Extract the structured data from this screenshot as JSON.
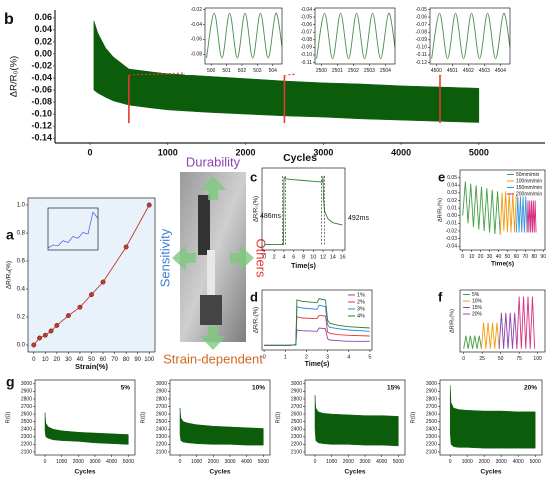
{
  "chart_data": [
    {
      "type": "area",
      "panel_label": "b",
      "xlabel": "Cycles",
      "ylabel": "ΔR/R₀(%)",
      "color": "#0b5d0b",
      "xlim": [
        -450,
        5850
      ],
      "ylim": [
        -0.148,
        0.073
      ],
      "xticks": [
        0,
        1000,
        2000,
        3000,
        4000,
        5000
      ],
      "yticks": [
        0.06,
        0.04,
        0.02,
        {
          "value": 0,
          "label": "0.00"
        },
        -0.02,
        -0.04,
        -0.06,
        -0.08,
        {
          "value": -0.1,
          "label": "-0.10"
        },
        -0.12,
        -0.14
      ],
      "x": [
        50,
        100,
        200,
        300,
        500,
        800,
        1000,
        1500,
        2000,
        2500,
        3000,
        3500,
        4000,
        4500,
        5000
      ],
      "series": [
        {
          "values": [
            0.055,
            0.035,
            0.01,
            -0.005,
            -0.025,
            -0.03,
            -0.033,
            -0.037,
            -0.041,
            -0.045,
            -0.048,
            -0.05,
            -0.053,
            -0.055,
            -0.057
          ]
        },
        {
          "values": [
            -0.06,
            -0.065,
            -0.072,
            -0.078,
            -0.085,
            -0.09,
            -0.093,
            -0.097,
            -0.1,
            -0.103,
            -0.105,
            -0.108,
            -0.11,
            -0.112,
            -0.114
          ]
        }
      ]
    },
    {
      "type": "line",
      "smooth": true,
      "xlim": [
        499.6,
        504.6
      ],
      "ylim": [
        -0.093,
        -0.018
      ],
      "xticks": [
        500,
        501,
        502,
        503,
        504
      ],
      "yticks": [
        -0.02,
        -0.04,
        -0.06,
        -0.08
      ],
      "series": [
        {
          "color": "#4c8a4c",
          "x": [
            499.7,
            500.2,
            500.7,
            501.2,
            501.7,
            502.2,
            502.7,
            503.2,
            503.7,
            504.2,
            504.6
          ],
          "values": [
            -0.085,
            -0.025,
            -0.085,
            -0.025,
            -0.085,
            -0.025,
            -0.085,
            -0.025,
            -0.085,
            -0.025,
            -0.07
          ]
        }
      ]
    },
    {
      "type": "line",
      "smooth": true,
      "xlim": [
        2499.6,
        2504.6
      ],
      "ylim": [
        -0.112,
        -0.038
      ],
      "xticks": [
        2500,
        2501,
        2502,
        2503,
        2504
      ],
      "yticks": [
        -0.04,
        -0.05,
        -0.06,
        -0.07,
        -0.08,
        -0.09,
        {
          "value": -0.1,
          "label": "-0.10"
        },
        -0.11
      ],
      "series": [
        {
          "color": "#4c8a4c",
          "x": [
            2499.7,
            2500.2,
            2500.7,
            2501.2,
            2501.7,
            2502.2,
            2502.7,
            2503.2,
            2503.7,
            2504.2,
            2504.6
          ],
          "values": [
            -0.105,
            -0.045,
            -0.105,
            -0.045,
            -0.105,
            -0.045,
            -0.105,
            -0.045,
            -0.105,
            -0.045,
            -0.09
          ]
        }
      ]
    },
    {
      "type": "line",
      "smooth": true,
      "xlim": [
        4499.6,
        4504.6
      ],
      "ylim": [
        -0.122,
        -0.048
      ],
      "xticks": [
        4500,
        4501,
        4502,
        4503,
        4504
      ],
      "yticks": [
        -0.05,
        -0.06,
        -0.07,
        -0.08,
        -0.09,
        {
          "value": -0.1,
          "label": "-0.10"
        },
        -0.11,
        -0.12
      ],
      "series": [
        {
          "color": "#4c8a4c",
          "x": [
            4499.7,
            4500.2,
            4500.7,
            4501.2,
            4501.7,
            4502.2,
            4502.7,
            4503.2,
            4503.7,
            4504.2,
            4504.6
          ],
          "values": [
            -0.115,
            -0.055,
            -0.115,
            -0.055,
            -0.115,
            -0.055,
            -0.115,
            -0.055,
            -0.115,
            -0.055,
            -0.1
          ]
        }
      ]
    },
    {
      "type": "line",
      "panel_label": "a",
      "markers": true,
      "background": "#e9f2fb",
      "xlabel": "Strain(%)",
      "ylabel": "ΔR/R₀(%)",
      "xlim": [
        -5,
        105
      ],
      "ylim": [
        -0.05,
        1.05
      ],
      "xticks": [
        0,
        10,
        20,
        30,
        40,
        50,
        60,
        70,
        80,
        90,
        100
      ],
      "yticks": [
        {
          "value": 0,
          "label": "0.0"
        },
        0.2,
        0.4,
        0.6,
        0.8,
        {
          "value": 1,
          "label": "1.0"
        }
      ],
      "series": [
        {
          "color": "#c0392b",
          "x": [
            0,
            5,
            10,
            15,
            20,
            30,
            40,
            50,
            60,
            80,
            100
          ],
          "values": [
            0,
            0.05,
            0.07,
            0.1,
            0.14,
            0.21,
            0.27,
            0.36,
            0.45,
            0.7,
            1.0
          ]
        }
      ]
    },
    {
      "type": "line",
      "xlim": [
        0,
        10
      ],
      "ylim": [
        0,
        1
      ],
      "series": [
        {
          "color": "#3b5bdb",
          "x": [
            0,
            1,
            2,
            3,
            4,
            5,
            6,
            7,
            8,
            9,
            10
          ],
          "values": [
            0.05,
            0.12,
            0.1,
            0.22,
            0.18,
            0.32,
            0.28,
            0.42,
            0.38,
            0.9,
            0.75
          ]
        }
      ]
    },
    {
      "type": "line",
      "panel_label": "c",
      "xlabel": "Time(s)",
      "ylabel": "ΔR/R₀(%)",
      "annotations": [
        "486ms",
        "492ms"
      ],
      "xlim": [
        -0.5,
        16.5
      ],
      "ylim": [
        -0.05,
        1
      ],
      "xticks": [
        0,
        2,
        4,
        6,
        8,
        10,
        12,
        14,
        16
      ],
      "series": [
        {
          "color": "#2e7d32",
          "x": [
            0,
            3.9,
            4.0,
            4.05,
            4.5,
            6,
            8,
            10,
            11.9,
            12.0,
            12.1,
            12.3,
            13,
            14,
            16
          ],
          "values": [
            0.02,
            0.02,
            0.85,
            0.88,
            0.86,
            0.85,
            0.84,
            0.83,
            0.82,
            0.9,
            0.6,
            0.45,
            0.35,
            0.3,
            0.27
          ]
        }
      ]
    },
    {
      "type": "line",
      "panel_label": "d",
      "xlabel": "Time(s)",
      "ylabel": "ΔR/R₀(%)",
      "legend": "upper right",
      "xlim": [
        -0.1,
        5.1
      ],
      "ylim": [
        -0.05,
        0.85
      ],
      "xticks": [
        0,
        1,
        2,
        3,
        4,
        5
      ],
      "x": [
        0,
        1.2,
        1.5,
        1.55,
        1.8,
        2.5,
        2.6,
        2.9,
        3.0,
        3.1,
        3.5,
        4,
        5
      ],
      "series": [
        {
          "name": "1%",
          "color": "#8e44ad",
          "values": [
            0.02,
            0.02,
            0.03,
            0.25,
            0.24,
            0.23,
            0.28,
            0.27,
            0.12,
            0.1,
            0.09,
            0.08,
            0.08
          ]
        },
        {
          "name": "2%",
          "color": "#e53935",
          "values": [
            0.02,
            0.02,
            0.03,
            0.45,
            0.43,
            0.42,
            0.47,
            0.46,
            0.22,
            0.2,
            0.18,
            0.17,
            0.16
          ]
        },
        {
          "name": "3%",
          "color": "#1e88e5",
          "values": [
            0.02,
            0.02,
            0.03,
            0.6,
            0.58,
            0.56,
            0.62,
            0.6,
            0.33,
            0.29,
            0.27,
            0.25,
            0.23
          ]
        },
        {
          "name": "4%",
          "color": "#2e7d32",
          "values": [
            0.02,
            0.02,
            0.03,
            0.7,
            0.68,
            0.66,
            0.72,
            0.7,
            0.4,
            0.35,
            0.32,
            0.3,
            0.28
          ]
        }
      ]
    },
    {
      "type": "line",
      "panel_label": "e",
      "xlabel": "Time(s)",
      "ylabel": "ΔR/R₀(%)",
      "legend": "upper right",
      "xlim": [
        -3,
        92
      ],
      "ylim": [
        -0.045,
        0.06
      ],
      "xticks": [
        0,
        10,
        20,
        30,
        40,
        50,
        60,
        70,
        80,
        90
      ],
      "yticks": [
        0.05,
        0.04,
        0.03,
        0.02,
        0.01,
        {
          "value": 0,
          "label": "0.00"
        },
        -0.01,
        -0.02,
        -0.03,
        -0.04
      ],
      "series": [
        {
          "name": "50mm/min",
          "color": "#43a047",
          "x": [
            0,
            3,
            6,
            9,
            12,
            15,
            18,
            21,
            24,
            27,
            30,
            33,
            36,
            39,
            42
          ],
          "values": [
            0,
            0.045,
            -0.01,
            0.042,
            -0.015,
            0.04,
            -0.018,
            0.038,
            -0.02,
            0.036,
            -0.022,
            0.034,
            -0.024,
            0.032,
            -0.025
          ]
        },
        {
          "name": "100mm/min",
          "color": "#f39c12",
          "x": [
            42,
            44,
            46,
            48,
            50,
            52,
            54,
            56,
            58,
            60
          ],
          "values": [
            -0.025,
            0.03,
            -0.02,
            0.032,
            -0.022,
            0.03,
            -0.022,
            0.03,
            -0.022,
            0.028
          ]
        },
        {
          "name": "150mm/min",
          "color": "#3498db",
          "x": [
            60,
            61.5,
            63,
            64.5,
            66,
            67.5,
            69,
            70.5,
            72
          ],
          "values": [
            -0.022,
            0.025,
            -0.022,
            0.025,
            -0.022,
            0.025,
            -0.022,
            0.025,
            -0.022
          ]
        },
        {
          "name": "200mm/min",
          "color": "#d63384",
          "x": [
            72,
            73,
            74,
            75,
            76,
            77,
            78,
            79,
            80,
            81,
            82
          ],
          "values": [
            -0.022,
            0.02,
            -0.022,
            0.02,
            -0.022,
            0.02,
            -0.022,
            0.02,
            -0.022,
            0.02,
            -0.022
          ]
        }
      ]
    },
    {
      "type": "line",
      "panel_label": "f",
      "ylabel": "ΔR/R₀(%)",
      "legend": "upper left",
      "xlim": [
        -5,
        110
      ],
      "ylim": [
        0,
        0.95
      ],
      "xticks": [
        0,
        25,
        50,
        75,
        100
      ],
      "series": [
        {
          "name": "5%",
          "color": "#43a047",
          "x": [
            0,
            3,
            6,
            9,
            12,
            15,
            18,
            21,
            24
          ],
          "values": [
            0.05,
            0.25,
            0.05,
            0.25,
            0.05,
            0.25,
            0.05,
            0.25,
            0.05
          ]
        },
        {
          "name": "10%",
          "color": "#f39c12",
          "x": [
            24,
            27,
            30,
            33,
            36,
            39,
            42,
            45,
            48
          ],
          "values": [
            0.05,
            0.45,
            0.05,
            0.45,
            0.05,
            0.45,
            0.05,
            0.45,
            0.05
          ]
        },
        {
          "name": "15%",
          "color": "#8e44ad",
          "x": [
            48,
            51,
            54,
            57,
            60,
            63,
            66,
            69,
            72
          ],
          "values": [
            0.05,
            0.6,
            0.05,
            0.6,
            0.05,
            0.6,
            0.05,
            0.6,
            0.05
          ]
        },
        {
          "name": "20%",
          "color": "#d63384",
          "x": [
            72,
            75,
            78,
            81,
            84,
            87,
            90,
            93,
            96
          ],
          "values": [
            0.05,
            0.85,
            0.05,
            0.85,
            0.05,
            0.85,
            0.05,
            0.85,
            0.05
          ]
        }
      ]
    },
    {
      "type": "area",
      "panel_label": "g",
      "xlabel": "Cycles",
      "ylabel": "R(Ω)",
      "annotations": [
        "5%"
      ],
      "color": "#0b5d0b",
      "xlim": [
        -600,
        5400
      ],
      "ylim": [
        2060,
        3050
      ],
      "xticks": [
        0,
        1000,
        2000,
        3000,
        4000,
        5000
      ],
      "yticks": [
        2100,
        2200,
        2300,
        2400,
        2500,
        2600,
        2700,
        2800,
        2900,
        3000
      ],
      "x": [
        0,
        50,
        200,
        500,
        1000,
        2000,
        3000,
        4000,
        5000
      ],
      "series": [
        {
          "values": [
            2620,
            2480,
            2430,
            2400,
            2380,
            2360,
            2350,
            2340,
            2330
          ]
        },
        {
          "values": [
            2380,
            2300,
            2280,
            2260,
            2250,
            2240,
            2220,
            2210,
            2200
          ]
        }
      ]
    },
    {
      "type": "area",
      "xlabel": "Cycles",
      "ylabel": "R(Ω)",
      "annotations": [
        "10%"
      ],
      "color": "#0b5d0b",
      "xlim": [
        -600,
        5400
      ],
      "ylim": [
        2060,
        3050
      ],
      "xticks": [
        0,
        1000,
        2000,
        3000,
        4000,
        5000
      ],
      "yticks": [
        2100,
        2200,
        2300,
        2400,
        2500,
        2600,
        2700,
        2800,
        2900,
        3000
      ],
      "x": [
        0,
        50,
        200,
        500,
        1000,
        2000,
        3000,
        4000,
        5000
      ],
      "series": [
        {
          "values": [
            2680,
            2550,
            2500,
            2480,
            2460,
            2440,
            2430,
            2420,
            2410
          ]
        },
        {
          "values": [
            2330,
            2250,
            2230,
            2220,
            2210,
            2200,
            2200,
            2190,
            2190
          ]
        }
      ]
    },
    {
      "type": "area",
      "xlabel": "Cycles",
      "ylabel": "R(Ω)",
      "annotations": [
        "15%"
      ],
      "color": "#0b5d0b",
      "xlim": [
        -600,
        5400
      ],
      "ylim": [
        2060,
        3050
      ],
      "xticks": [
        0,
        1000,
        2000,
        3000,
        4000,
        5000
      ],
      "yticks": [
        2100,
        2200,
        2300,
        2400,
        2500,
        2600,
        2700,
        2800,
        2900,
        3000
      ],
      "x": [
        0,
        50,
        200,
        500,
        1000,
        2000,
        3000,
        4000,
        5000
      ],
      "series": [
        {
          "values": [
            2850,
            2680,
            2630,
            2610,
            2600,
            2590,
            2580,
            2580,
            2570
          ]
        },
        {
          "values": [
            2400,
            2250,
            2220,
            2210,
            2200,
            2200,
            2190,
            2190,
            2180
          ]
        }
      ]
    },
    {
      "type": "area",
      "xlabel": "Cycles",
      "ylabel": "R(Ω)",
      "annotations": [
        "20%"
      ],
      "color": "#0b5d0b",
      "xlim": [
        -600,
        5400
      ],
      "ylim": [
        2060,
        3050
      ],
      "xticks": [
        0,
        1000,
        2000,
        3000,
        4000,
        5000
      ],
      "yticks": [
        2100,
        2200,
        2300,
        2400,
        2500,
        2600,
        2700,
        2800,
        2900,
        3000
      ],
      "x": [
        0,
        50,
        200,
        500,
        1000,
        2000,
        3000,
        4000,
        5000
      ],
      "series": [
        {
          "values": [
            2980,
            2750,
            2680,
            2660,
            2650,
            2640,
            2640,
            2630,
            2630
          ]
        },
        {
          "values": [
            2350,
            2200,
            2170,
            2160,
            2160,
            2150,
            2150,
            2150,
            2150
          ]
        }
      ]
    }
  ],
  "center": {
    "durability": "Durability",
    "sensitivity": "Sensitivity",
    "others": "Others",
    "strain_dependent": "Strain-dependent"
  }
}
